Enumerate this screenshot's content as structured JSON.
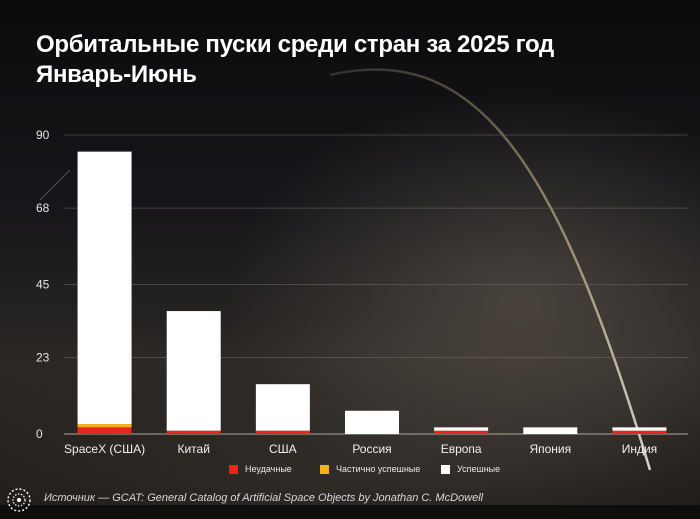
{
  "title": {
    "line1": "Орбитальные пуски среди стран за 2025 год",
    "line2": "Январь-Июнь"
  },
  "source": "Источник — GCAT: General Catalog of Artificial Space Objects by Jonathan C. McDowell",
  "colors": {
    "failed": "#e8251f",
    "partial": "#f2b21c",
    "success": "#ffffff",
    "grid": "#7a7570",
    "trajectory": "#ffe9b0"
  },
  "logo_icon": "orbit-logo-icon",
  "chart_data": {
    "type": "bar",
    "stacked": true,
    "categories": [
      "SpaceX (США)",
      "Китай",
      "США",
      "Россия",
      "Европа",
      "Япония",
      "Индия"
    ],
    "series": [
      {
        "name": "Неудачные",
        "values": [
          2,
          1,
          1,
          0,
          1,
          0,
          1
        ]
      },
      {
        "name": "Частично успешные",
        "values": [
          1,
          0,
          0,
          0,
          0,
          0,
          0
        ]
      },
      {
        "name": "Успешные",
        "values": [
          82,
          36,
          14,
          7,
          1,
          2,
          1
        ]
      }
    ],
    "yticks": [
      0,
      23,
      45,
      68,
      90
    ],
    "ylim": [
      0,
      90
    ],
    "grid": true,
    "legend": "bottom"
  }
}
